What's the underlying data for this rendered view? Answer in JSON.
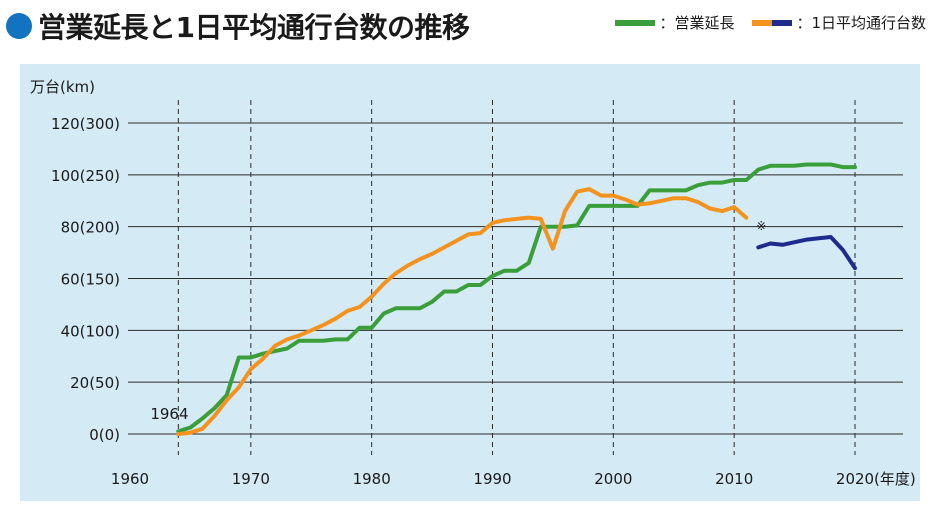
{
  "title": "営業延長と1日平均通行台数の推移",
  "colors": {
    "title_dot": "#1273c1",
    "panel_bg": "#d4ebf6",
    "series_length": "#3a9e3a",
    "series_traffic_old": "#f3931e",
    "series_traffic_new": "#1f2b8c"
  },
  "legend": {
    "length_label": "：営業延長",
    "traffic_label": "：1日平均通行台数"
  },
  "chart_data": {
    "type": "line",
    "title": "営業延長と1日平均通行台数の推移",
    "ylabel": "万台(km)",
    "xlabel": "(年度)",
    "xlim": [
      1958,
      2024
    ],
    "ylim": [
      0,
      120
    ],
    "x_ticks": [
      1960,
      1970,
      1980,
      1990,
      2000,
      2010,
      2020
    ],
    "y_ticks": [
      {
        "value": 0,
        "label": "0(0)"
      },
      {
        "value": 20,
        "label": "20(50)"
      },
      {
        "value": 40,
        "label": "40(100)"
      },
      {
        "value": 60,
        "label": "60(150)"
      },
      {
        "value": 80,
        "label": "80(200)"
      },
      {
        "value": 100,
        "label": "100(250)"
      },
      {
        "value": 120,
        "label": "120(300)"
      }
    ],
    "vertical_dashed_at": [
      1964,
      1970,
      1980,
      1990,
      2000,
      2010,
      2020
    ],
    "grid": true,
    "annotations": [
      {
        "text": "1964",
        "x": 1964,
        "y": 5
      },
      {
        "text": "※",
        "x": 2011,
        "y": 88
      }
    ],
    "series": [
      {
        "key": "length",
        "note": "km (right value / 2.5 scale)",
        "points": [
          [
            1964,
            1
          ],
          [
            1965,
            2.5
          ],
          [
            1966,
            6
          ],
          [
            1967,
            10
          ],
          [
            1968,
            15
          ],
          [
            1969,
            29.5
          ],
          [
            1970,
            29.5
          ],
          [
            1971,
            31
          ],
          [
            1972,
            32
          ],
          [
            1973,
            33
          ],
          [
            1974,
            36
          ],
          [
            1975,
            36
          ],
          [
            1976,
            36
          ],
          [
            1977,
            36.5
          ],
          [
            1978,
            36.5
          ],
          [
            1979,
            41
          ],
          [
            1980,
            41
          ],
          [
            1981,
            46.5
          ],
          [
            1982,
            48.5
          ],
          [
            1983,
            48.5
          ],
          [
            1984,
            48.5
          ],
          [
            1985,
            51
          ],
          [
            1986,
            55
          ],
          [
            1987,
            55
          ],
          [
            1988,
            57.5
          ],
          [
            1989,
            57.5
          ],
          [
            1990,
            61
          ],
          [
            1991,
            63
          ],
          [
            1992,
            63
          ],
          [
            1993,
            66
          ],
          [
            1994,
            80
          ],
          [
            1995,
            80
          ],
          [
            1996,
            80
          ],
          [
            1997,
            80.5
          ],
          [
            1998,
            88
          ],
          [
            1999,
            88
          ],
          [
            2000,
            88
          ],
          [
            2001,
            88
          ],
          [
            2002,
            88
          ],
          [
            2003,
            94
          ],
          [
            2004,
            94
          ],
          [
            2005,
            94
          ],
          [
            2006,
            94
          ],
          [
            2007,
            96
          ],
          [
            2008,
            97
          ],
          [
            2009,
            97
          ],
          [
            2010,
            98
          ],
          [
            2011,
            98
          ],
          [
            2012,
            102
          ],
          [
            2013,
            103.5
          ],
          [
            2014,
            103.5
          ],
          [
            2015,
            103.5
          ],
          [
            2016,
            104
          ],
          [
            2017,
            104
          ],
          [
            2018,
            104
          ],
          [
            2019,
            103
          ],
          [
            2020,
            103
          ]
        ]
      },
      {
        "key": "traffic_old",
        "note": "万台/日",
        "points": [
          [
            1964,
            0
          ],
          [
            1965,
            0.5
          ],
          [
            1966,
            2
          ],
          [
            1967,
            7
          ],
          [
            1968,
            13
          ],
          [
            1969,
            18
          ],
          [
            1970,
            25
          ],
          [
            1971,
            29
          ],
          [
            1972,
            34
          ],
          [
            1973,
            36.5
          ],
          [
            1974,
            38
          ],
          [
            1975,
            40
          ],
          [
            1976,
            42
          ],
          [
            1977,
            44.5
          ],
          [
            1978,
            47.5
          ],
          [
            1979,
            49
          ],
          [
            1980,
            53
          ],
          [
            1981,
            58
          ],
          [
            1982,
            62
          ],
          [
            1983,
            65
          ],
          [
            1984,
            67.5
          ],
          [
            1985,
            69.5
          ],
          [
            1986,
            72
          ],
          [
            1987,
            74.5
          ],
          [
            1988,
            77
          ],
          [
            1989,
            77.5
          ],
          [
            1990,
            81.5
          ],
          [
            1991,
            82.5
          ],
          [
            1992,
            83
          ],
          [
            1993,
            83.5
          ],
          [
            1994,
            83
          ],
          [
            1995,
            71.5
          ],
          [
            1996,
            86
          ],
          [
            1997,
            93.5
          ],
          [
            1998,
            94.5
          ],
          [
            1999,
            92
          ],
          [
            2000,
            92
          ],
          [
            2001,
            90.5
          ],
          [
            2002,
            88.5
          ],
          [
            2003,
            89
          ],
          [
            2004,
            90
          ],
          [
            2005,
            91
          ],
          [
            2006,
            91
          ],
          [
            2007,
            89.5
          ],
          [
            2008,
            87
          ],
          [
            2009,
            86
          ],
          [
            2010,
            87.5
          ],
          [
            2011,
            83.5
          ]
        ]
      },
      {
        "key": "traffic_new",
        "note": "万台/日",
        "points": [
          [
            2012,
            72
          ],
          [
            2013,
            73.5
          ],
          [
            2014,
            73
          ],
          [
            2015,
            74
          ],
          [
            2016,
            75
          ],
          [
            2017,
            75.5
          ],
          [
            2018,
            76
          ],
          [
            2019,
            71
          ],
          [
            2020,
            64
          ]
        ]
      }
    ]
  }
}
